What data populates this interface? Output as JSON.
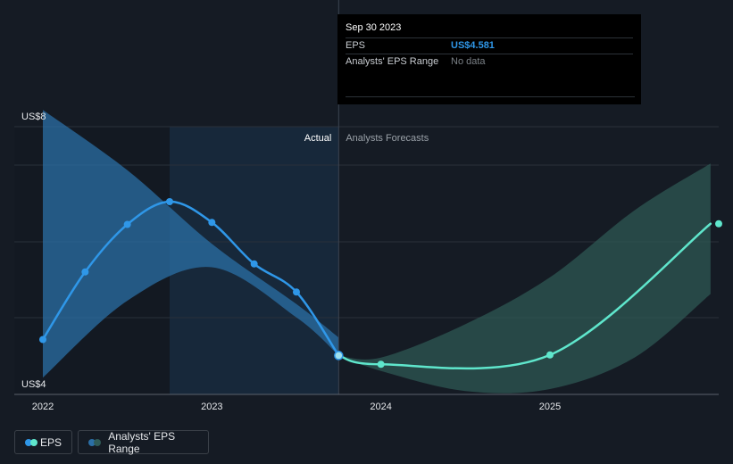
{
  "tooltip": {
    "date": "Sep 30 2023",
    "rows": [
      {
        "label": "EPS",
        "value": "US$4.581"
      },
      {
        "label": "Analysts' EPS Range",
        "value": "No data"
      }
    ]
  },
  "legend": {
    "eps_label": "EPS",
    "range_label": "Analysts' EPS Range"
  },
  "colors": {
    "eps_actual": "#2f97e8",
    "eps_forecast": "#5fe6cc",
    "range_actual": "#2b6fa6",
    "range_forecast": "#2f5b57",
    "tooltip_value": "#2f97e8"
  },
  "chart_data": {
    "type": "line",
    "section_labels": {
      "actual": "Actual",
      "forecast": "Analysts Forecasts"
    },
    "y_tick_labels": [
      {
        "value": 8,
        "label": "US$8"
      },
      {
        "value": 4,
        "label": "US$4"
      }
    ],
    "ylim": [
      4,
      8
    ],
    "x_tick_labels": [
      {
        "value": 2022.0,
        "label": "2022"
      },
      {
        "value": 2023.0,
        "label": "2023"
      },
      {
        "value": 2024.0,
        "label": "2024"
      },
      {
        "value": 2025.0,
        "label": "2025"
      }
    ],
    "xlim": [
      2021.83,
      2025.95
    ],
    "actual_end": 2023.75,
    "shaded_start": 2022.75,
    "series": [
      {
        "name": "EPS",
        "role": "actual",
        "points": [
          [
            2022.0,
            4.82
          ],
          [
            2022.25,
            5.83
          ],
          [
            2022.5,
            6.54
          ],
          [
            2022.75,
            6.88
          ],
          [
            2023.0,
            6.57
          ],
          [
            2023.25,
            5.95
          ],
          [
            2023.5,
            5.53
          ],
          [
            2023.75,
            4.581
          ]
        ]
      },
      {
        "name": "EPS",
        "role": "forecast",
        "points": [
          [
            2023.75,
            4.581
          ],
          [
            2024.0,
            4.45
          ],
          [
            2025.0,
            4.59
          ],
          [
            2025.95,
            6.55
          ]
        ]
      }
    ],
    "ranges": [
      {
        "name": "Analysts' EPS Range",
        "role": "actual",
        "x": [
          2022.0,
          2022.5,
          2023.0,
          2023.5,
          2023.75
        ],
        "high": [
          8.25,
          7.35,
          6.25,
          5.35,
          4.85
        ],
        "low": [
          4.25,
          5.4,
          5.9,
          5.15,
          4.581
        ]
      },
      {
        "name": "Analysts' EPS Range",
        "role": "forecast",
        "x": [
          2023.75,
          2024.0,
          2024.5,
          2025.0,
          2025.5,
          2025.95
        ],
        "high": [
          4.581,
          4.55,
          5.05,
          5.75,
          6.75,
          7.45
        ],
        "low": [
          4.581,
          4.35,
          4.05,
          4.08,
          4.55,
          5.5
        ]
      }
    ]
  }
}
